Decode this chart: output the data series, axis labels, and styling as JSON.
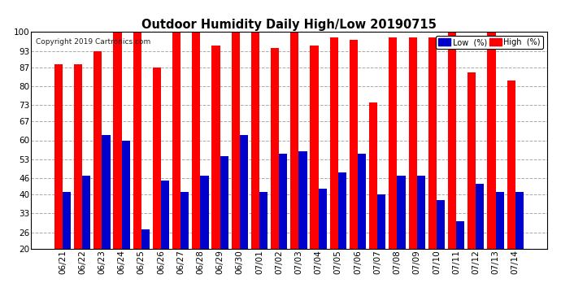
{
  "title": "Outdoor Humidity Daily High/Low 20190715",
  "copyright": "Copyright 2019 Cartronics.com",
  "categories": [
    "06/21",
    "06/22",
    "06/23",
    "06/24",
    "06/25",
    "06/26",
    "06/27",
    "06/28",
    "06/29",
    "06/30",
    "07/01",
    "07/02",
    "07/03",
    "07/04",
    "07/05",
    "07/06",
    "07/07",
    "07/08",
    "07/09",
    "07/10",
    "07/11",
    "07/12",
    "07/13",
    "07/14"
  ],
  "high_values": [
    88,
    88,
    93,
    100,
    100,
    87,
    100,
    100,
    95,
    100,
    100,
    94,
    100,
    95,
    98,
    97,
    74,
    98,
    98,
    98,
    100,
    85,
    100,
    82
  ],
  "low_values": [
    41,
    47,
    62,
    60,
    27,
    45,
    41,
    47,
    54,
    62,
    41,
    55,
    56,
    42,
    48,
    55,
    40,
    47,
    47,
    38,
    30,
    44,
    41,
    41
  ],
  "high_color": "#ff0000",
  "low_color": "#0000cc",
  "background_color": "#ffffff",
  "grid_color": "#aaaaaa",
  "ylim_min": 20,
  "ylim_max": 100,
  "yticks": [
    20,
    26,
    33,
    40,
    46,
    53,
    60,
    67,
    73,
    80,
    87,
    93,
    100
  ],
  "bar_width": 0.42,
  "legend_low_label": "Low  (%)",
  "legend_high_label": "High  (%)"
}
